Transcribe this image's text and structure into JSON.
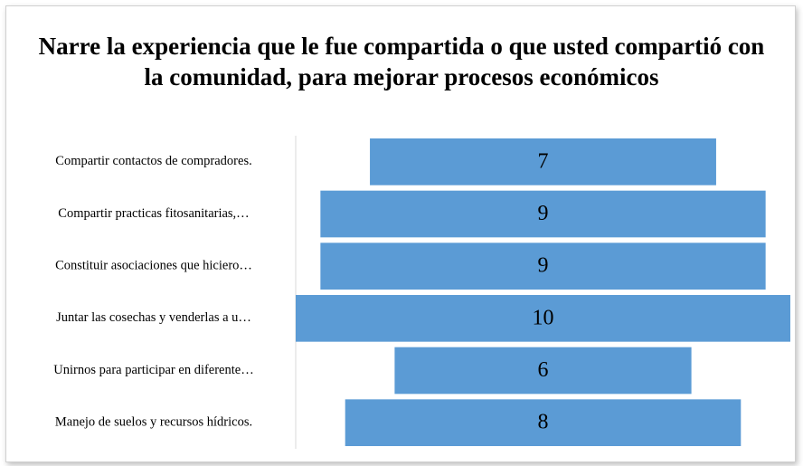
{
  "chart_data": {
    "type": "funnel",
    "title": "Narre la experiencia que le fue compartida o que usted compartió con la comunidad, para mejorar procesos económicos",
    "categories": [
      "Compartir contactos de compradores.",
      "Compartir practicas fitosanitarias,…",
      "Constituir asociaciones que hiciero…",
      "Juntar las cosechas y venderlas a u…",
      "Unirnos para participar en diferente…",
      "Manejo de suelos y recursos hídricos."
    ],
    "values": [
      7,
      9,
      9,
      10,
      6,
      8
    ],
    "color": "#5b9bd5"
  }
}
